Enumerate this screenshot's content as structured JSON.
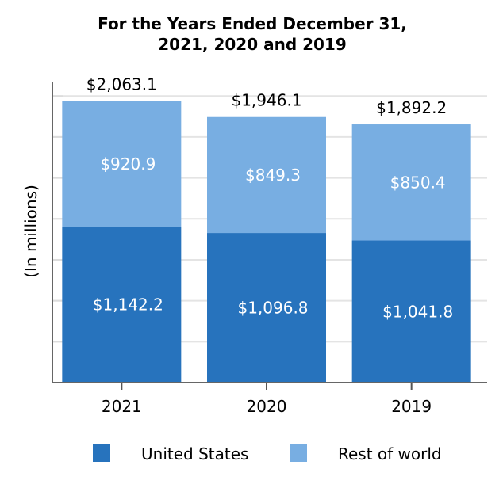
{
  "chart_data": {
    "type": "bar",
    "stacked": true,
    "title_lines": [
      "For the Years Ended December 31,",
      "2021, 2020 and 2019"
    ],
    "xlabel": "",
    "ylabel": "(In millions)",
    "categories": [
      "2021",
      "2020",
      "2019"
    ],
    "series": [
      {
        "name": "United States",
        "color": "#2773bd",
        "values": [
          1142.2,
          1096.8,
          1041.8
        ],
        "labels": [
          "$1,142.2",
          "$1,096.8",
          "$1,041.8"
        ]
      },
      {
        "name": "Rest of world",
        "color": "#78aee2",
        "values": [
          920.9,
          849.3,
          850.4
        ],
        "labels": [
          "$920.9",
          "$849.3",
          "$850.4"
        ]
      }
    ],
    "totals": [
      2063.1,
      1946.1,
      1892.2
    ],
    "total_labels": [
      "$2,063.1",
      "$1,946.1",
      "$1,892.2"
    ],
    "ylim": [
      0,
      2200
    ],
    "grid": true,
    "legend_position": "bottom"
  }
}
